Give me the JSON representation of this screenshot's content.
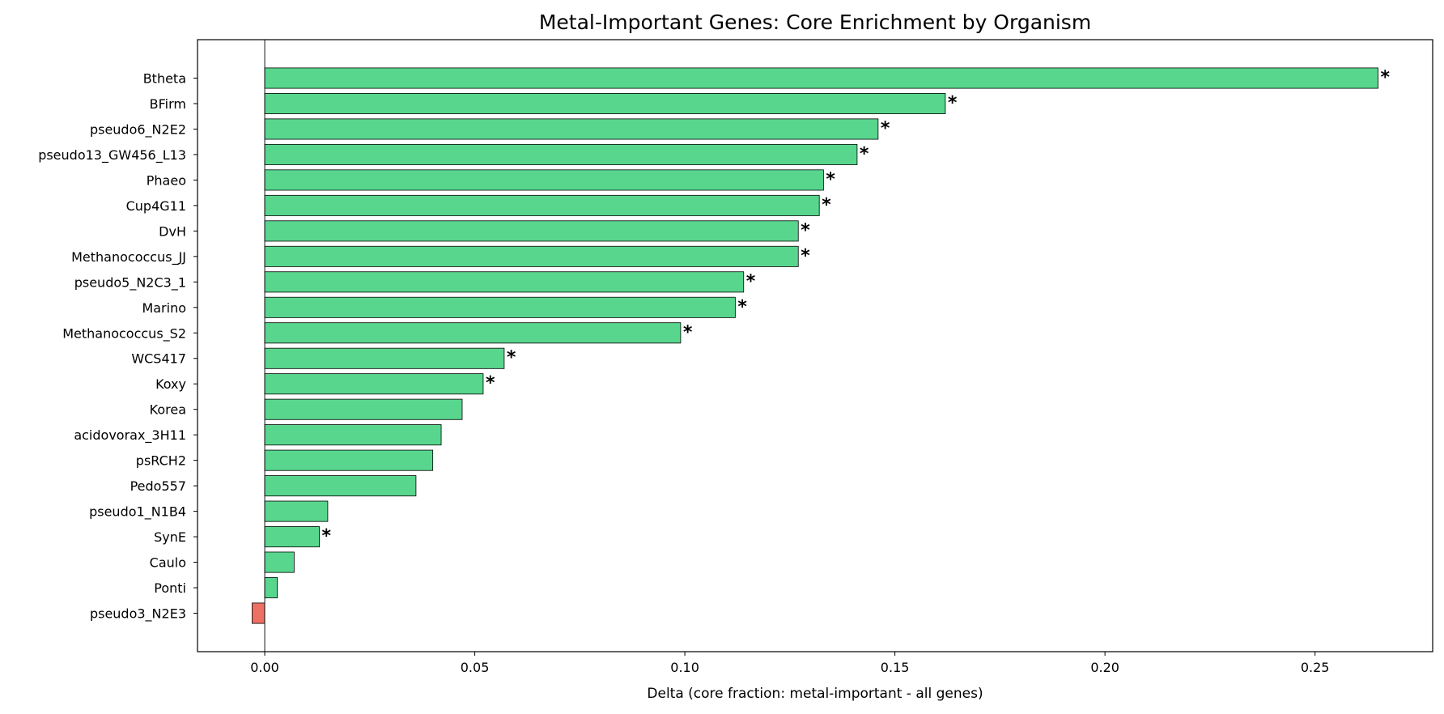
{
  "chart_data": {
    "type": "bar",
    "orientation": "horizontal",
    "title": "Metal-Important Genes: Core Enrichment by Organism",
    "xlabel": "Delta (core fraction: metal-important - all genes)",
    "ylabel": "",
    "xlim": [
      -0.016,
      0.278
    ],
    "xticks": [
      0.0,
      0.05,
      0.1,
      0.15,
      0.2,
      0.25
    ],
    "xtick_labels": [
      "0.00",
      "0.05",
      "0.10",
      "0.15",
      "0.20",
      "0.25"
    ],
    "grid": false,
    "legend": "none",
    "positive_color": "#58d68d",
    "negative_color": "#ec7063",
    "edge_color": "#000000",
    "significance_marker": "*",
    "categories": [
      "Btheta",
      "BFirm",
      "pseudo6_N2E2",
      "pseudo13_GW456_L13",
      "Phaeo",
      "Cup4G11",
      "DvH",
      "Methanococcus_JJ",
      "pseudo5_N2C3_1",
      "Marino",
      "Methanococcus_S2",
      "WCS417",
      "Koxy",
      "Korea",
      "acidovorax_3H11",
      "psRCH2",
      "Pedo557",
      "pseudo1_N1B4",
      "SynE",
      "Caulo",
      "Ponti",
      "pseudo3_N2E3"
    ],
    "values": [
      0.265,
      0.162,
      0.146,
      0.141,
      0.133,
      0.132,
      0.127,
      0.127,
      0.114,
      0.112,
      0.099,
      0.057,
      0.052,
      0.047,
      0.042,
      0.04,
      0.036,
      0.015,
      0.013,
      0.007,
      0.003,
      -0.003
    ],
    "significant": [
      true,
      true,
      true,
      true,
      true,
      true,
      true,
      true,
      true,
      true,
      true,
      true,
      true,
      false,
      false,
      false,
      false,
      false,
      true,
      false,
      false,
      false
    ]
  }
}
